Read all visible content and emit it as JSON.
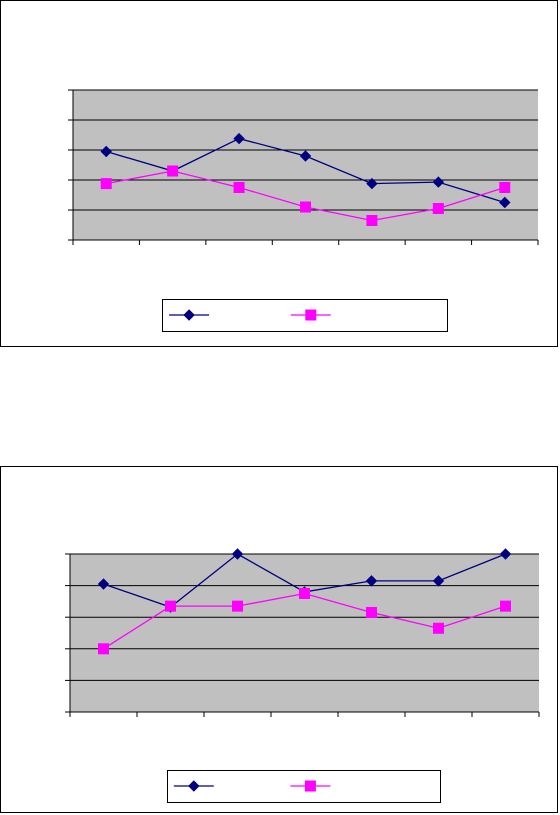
{
  "chart_data": [
    {
      "type": "line",
      "title": "",
      "xlabel": "",
      "ylabel": "",
      "categories": [
        "",
        "",
        "",
        "",
        "",
        "",
        ""
      ],
      "ylim": [
        0,
        5
      ],
      "grid": true,
      "legend": "bottom",
      "series": [
        {
          "name": "",
          "color": "#000080",
          "marker": "diamond",
          "values": [
            2.95,
            2.3,
            3.38,
            2.8,
            1.88,
            1.93,
            1.25
          ]
        },
        {
          "name": "",
          "color": "#FF00FF",
          "marker": "square",
          "values": [
            1.88,
            2.3,
            1.75,
            1.1,
            0.65,
            1.05,
            1.75
          ]
        }
      ]
    },
    {
      "type": "line",
      "title": "",
      "xlabel": "",
      "ylabel": "",
      "categories": [
        "",
        "",
        "",
        "",
        "",
        "",
        ""
      ],
      "ylim": [
        0,
        5
      ],
      "grid": true,
      "legend": "bottom",
      "series": [
        {
          "name": "",
          "color": "#000080",
          "marker": "diamond",
          "values": [
            4.05,
            3.32,
            5.0,
            3.8,
            4.15,
            4.15,
            5.0
          ]
        },
        {
          "name": "",
          "color": "#FF00FF",
          "marker": "square",
          "values": [
            2.0,
            3.35,
            3.35,
            3.75,
            3.15,
            2.65,
            3.35
          ]
        }
      ]
    }
  ]
}
